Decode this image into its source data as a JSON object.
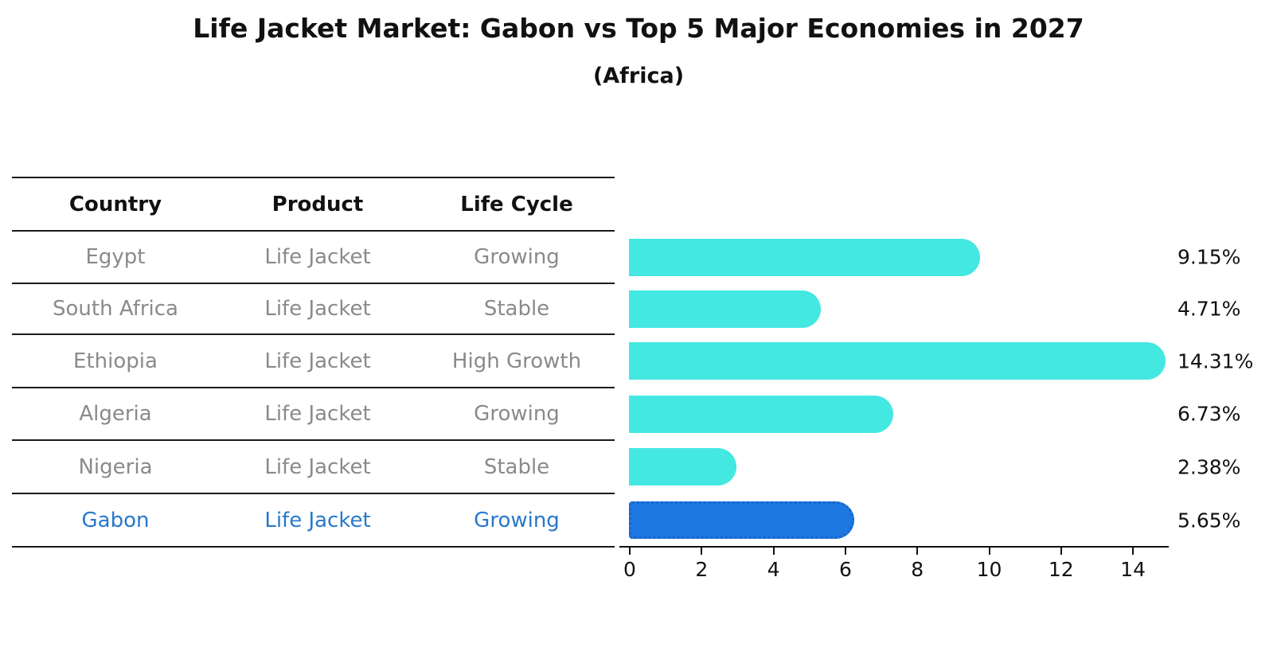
{
  "title": "Life Jacket Market: Gabon vs Top 5 Major Economies in 2027",
  "subtitle": "(Africa)",
  "table": {
    "headers": [
      "Country",
      "Product",
      "Life Cycle"
    ],
    "rows": [
      {
        "country": "Egypt",
        "product": "Life Jacket",
        "life_cycle": "Growing"
      },
      {
        "country": "South Africa",
        "product": "Life Jacket",
        "life_cycle": "Stable"
      },
      {
        "country": "Ethiopia",
        "product": "Life Jacket",
        "life_cycle": "High Growth"
      },
      {
        "country": "Algeria",
        "product": "Life Jacket",
        "life_cycle": "Growing"
      },
      {
        "country": "Nigeria",
        "product": "Life Jacket",
        "life_cycle": "Stable"
      },
      {
        "country": "Gabon",
        "product": "Life Jacket",
        "life_cycle": "Growing"
      }
    ],
    "highlight_row": 5,
    "text_color": "#8a8a8a",
    "highlight_text_color": "#2878cb"
  },
  "chart_data": {
    "type": "bar",
    "orientation": "horizontal",
    "title": "Life Jacket Market: Gabon vs Top 5 Major Economies in 2027",
    "subtitle": "(Africa)",
    "categories": [
      "Egypt",
      "South Africa",
      "Ethiopia",
      "Algeria",
      "Nigeria",
      "Gabon"
    ],
    "values": [
      9.15,
      4.71,
      14.31,
      6.73,
      2.38,
      5.65
    ],
    "value_labels": [
      "9.15%",
      "4.71%",
      "14.31%",
      "6.73%",
      "2.38%",
      "5.65%"
    ],
    "xlabel": "",
    "ylabel": "",
    "xlim": [
      0,
      15
    ],
    "x_ticks": [
      0,
      2,
      4,
      6,
      8,
      10,
      12,
      14
    ],
    "grid": false,
    "legend": "none",
    "bar_color": "#43e8e1",
    "highlight_bar_color": "#1e78e2",
    "highlight_bar_border": "#1565cc",
    "highlight_index": 5
  }
}
